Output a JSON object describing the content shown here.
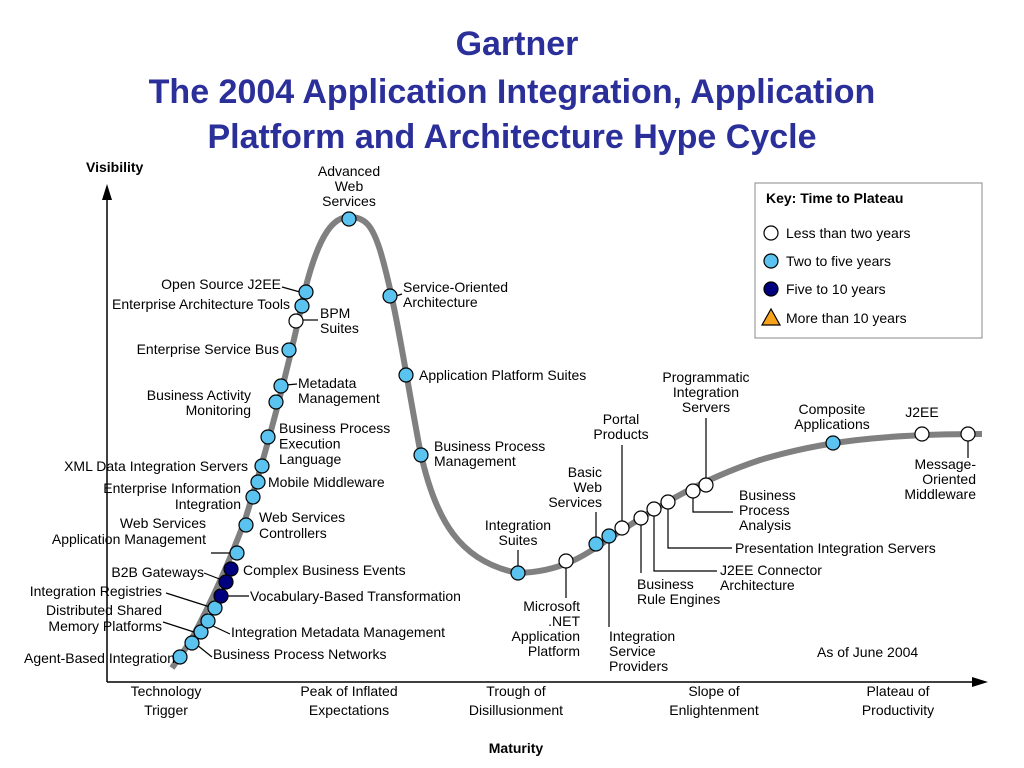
{
  "title": {
    "line1": "Gartner",
    "line2": "The 2004 Application Integration, Application",
    "line3": "Platform and Architecture Hype Cycle"
  },
  "axes": {
    "y_label": "Visibility",
    "x_label": "Maturity"
  },
  "phases": [
    {
      "lines": [
        "Technology",
        "Trigger"
      ]
    },
    {
      "lines": [
        "Peak of Inflated",
        "Expectations"
      ]
    },
    {
      "lines": [
        "Trough of",
        "Disillusionment"
      ]
    },
    {
      "lines": [
        "Slope of",
        "Enlightenment"
      ]
    },
    {
      "lines": [
        "Plateau of",
        "Productivity"
      ]
    }
  ],
  "key": {
    "title": "Key: Time to Plateau",
    "items": [
      {
        "label": "Less than two years",
        "color": "#ffffff",
        "shape": "circle"
      },
      {
        "label": "Two to five years",
        "color": "#5bc3ef",
        "shape": "circle"
      },
      {
        "label": "Five to 10 years",
        "color": "#00007f",
        "shape": "circle"
      },
      {
        "label": "More than 10 years",
        "color": "#f7a21b",
        "shape": "triangle"
      }
    ]
  },
  "as_of": "As of June 2004",
  "technologies": [
    {
      "lines": [
        "Agent-Based Integration"
      ],
      "status": "two-to-five"
    },
    {
      "lines": [
        "Business Process Networks"
      ],
      "status": "two-to-five"
    },
    {
      "lines": [
        "Distributed Shared",
        "Memory Platforms"
      ],
      "status": "two-to-five"
    },
    {
      "lines": [
        "Integration Metadata Management"
      ],
      "status": "two-to-five"
    },
    {
      "lines": [
        "Integration Registries"
      ],
      "status": "two-to-five"
    },
    {
      "lines": [
        "Vocabulary-Based Transformation"
      ],
      "status": "five-to-ten"
    },
    {
      "lines": [
        "B2B Gateways"
      ],
      "status": "five-to-ten"
    },
    {
      "lines": [
        "Complex Business Events"
      ],
      "status": "five-to-ten"
    },
    {
      "lines": [
        "Web Services",
        "Application Management"
      ],
      "status": "two-to-five"
    },
    {
      "lines": [
        "Web Services",
        "Controllers"
      ],
      "status": "two-to-five"
    },
    {
      "lines": [
        "Enterprise Information",
        "Integration"
      ],
      "status": "two-to-five"
    },
    {
      "lines": [
        "Mobile Middleware"
      ],
      "status": "two-to-five"
    },
    {
      "lines": [
        "XML Data Integration Servers"
      ],
      "status": "two-to-five"
    },
    {
      "lines": [
        "Business Process",
        "Execution",
        "Language"
      ],
      "status": "two-to-five"
    },
    {
      "lines": [
        "Business Activity",
        "Monitoring"
      ],
      "status": "two-to-five"
    },
    {
      "lines": [
        "Metadata",
        "Management"
      ],
      "status": "two-to-five"
    },
    {
      "lines": [
        "Enterprise Service Bus"
      ],
      "status": "two-to-five"
    },
    {
      "lines": [
        "BPM",
        "Suites"
      ],
      "status": "less-than-two"
    },
    {
      "lines": [
        "Enterprise Architecture Tools"
      ],
      "status": "two-to-five"
    },
    {
      "lines": [
        "Open Source J2EE"
      ],
      "status": "two-to-five"
    },
    {
      "lines": [
        "Advanced",
        "Web",
        "Services"
      ],
      "status": "two-to-five"
    },
    {
      "lines": [
        "Service-Oriented",
        "Architecture"
      ],
      "status": "two-to-five"
    },
    {
      "lines": [
        "Application Platform Suites"
      ],
      "status": "two-to-five"
    },
    {
      "lines": [
        "Business Process",
        "Management"
      ],
      "status": "two-to-five"
    },
    {
      "lines": [
        "Integration",
        "Suites"
      ],
      "status": "two-to-five"
    },
    {
      "lines": [
        "Microsoft",
        ".NET",
        "Application",
        "Platform"
      ],
      "status": "less-than-two"
    },
    {
      "lines": [
        "Basic",
        "Web",
        "Services"
      ],
      "status": "two-to-five"
    },
    {
      "lines": [
        "Integration",
        "Service",
        "Providers"
      ],
      "status": "two-to-five"
    },
    {
      "lines": [
        "Portal",
        "Products"
      ],
      "status": "less-than-two"
    },
    {
      "lines": [
        "Business",
        "Rule Engines"
      ],
      "status": "less-than-two"
    },
    {
      "lines": [
        "J2EE Connector",
        "Architecture"
      ],
      "status": "less-than-two"
    },
    {
      "lines": [
        "Presentation Integration Servers"
      ],
      "status": "less-than-two"
    },
    {
      "lines": [
        "Business",
        "Process",
        "Analysis"
      ],
      "status": "less-than-two"
    },
    {
      "lines": [
        "Programmatic",
        "Integration",
        "Servers"
      ],
      "status": "less-than-two"
    },
    {
      "lines": [
        "Composite",
        "Applications"
      ],
      "status": "two-to-five"
    },
    {
      "lines": [
        "J2EE"
      ],
      "status": "less-than-two"
    },
    {
      "lines": [
        "Message-",
        "Oriented",
        "Middleware"
      ],
      "status": "less-than-two"
    }
  ]
}
